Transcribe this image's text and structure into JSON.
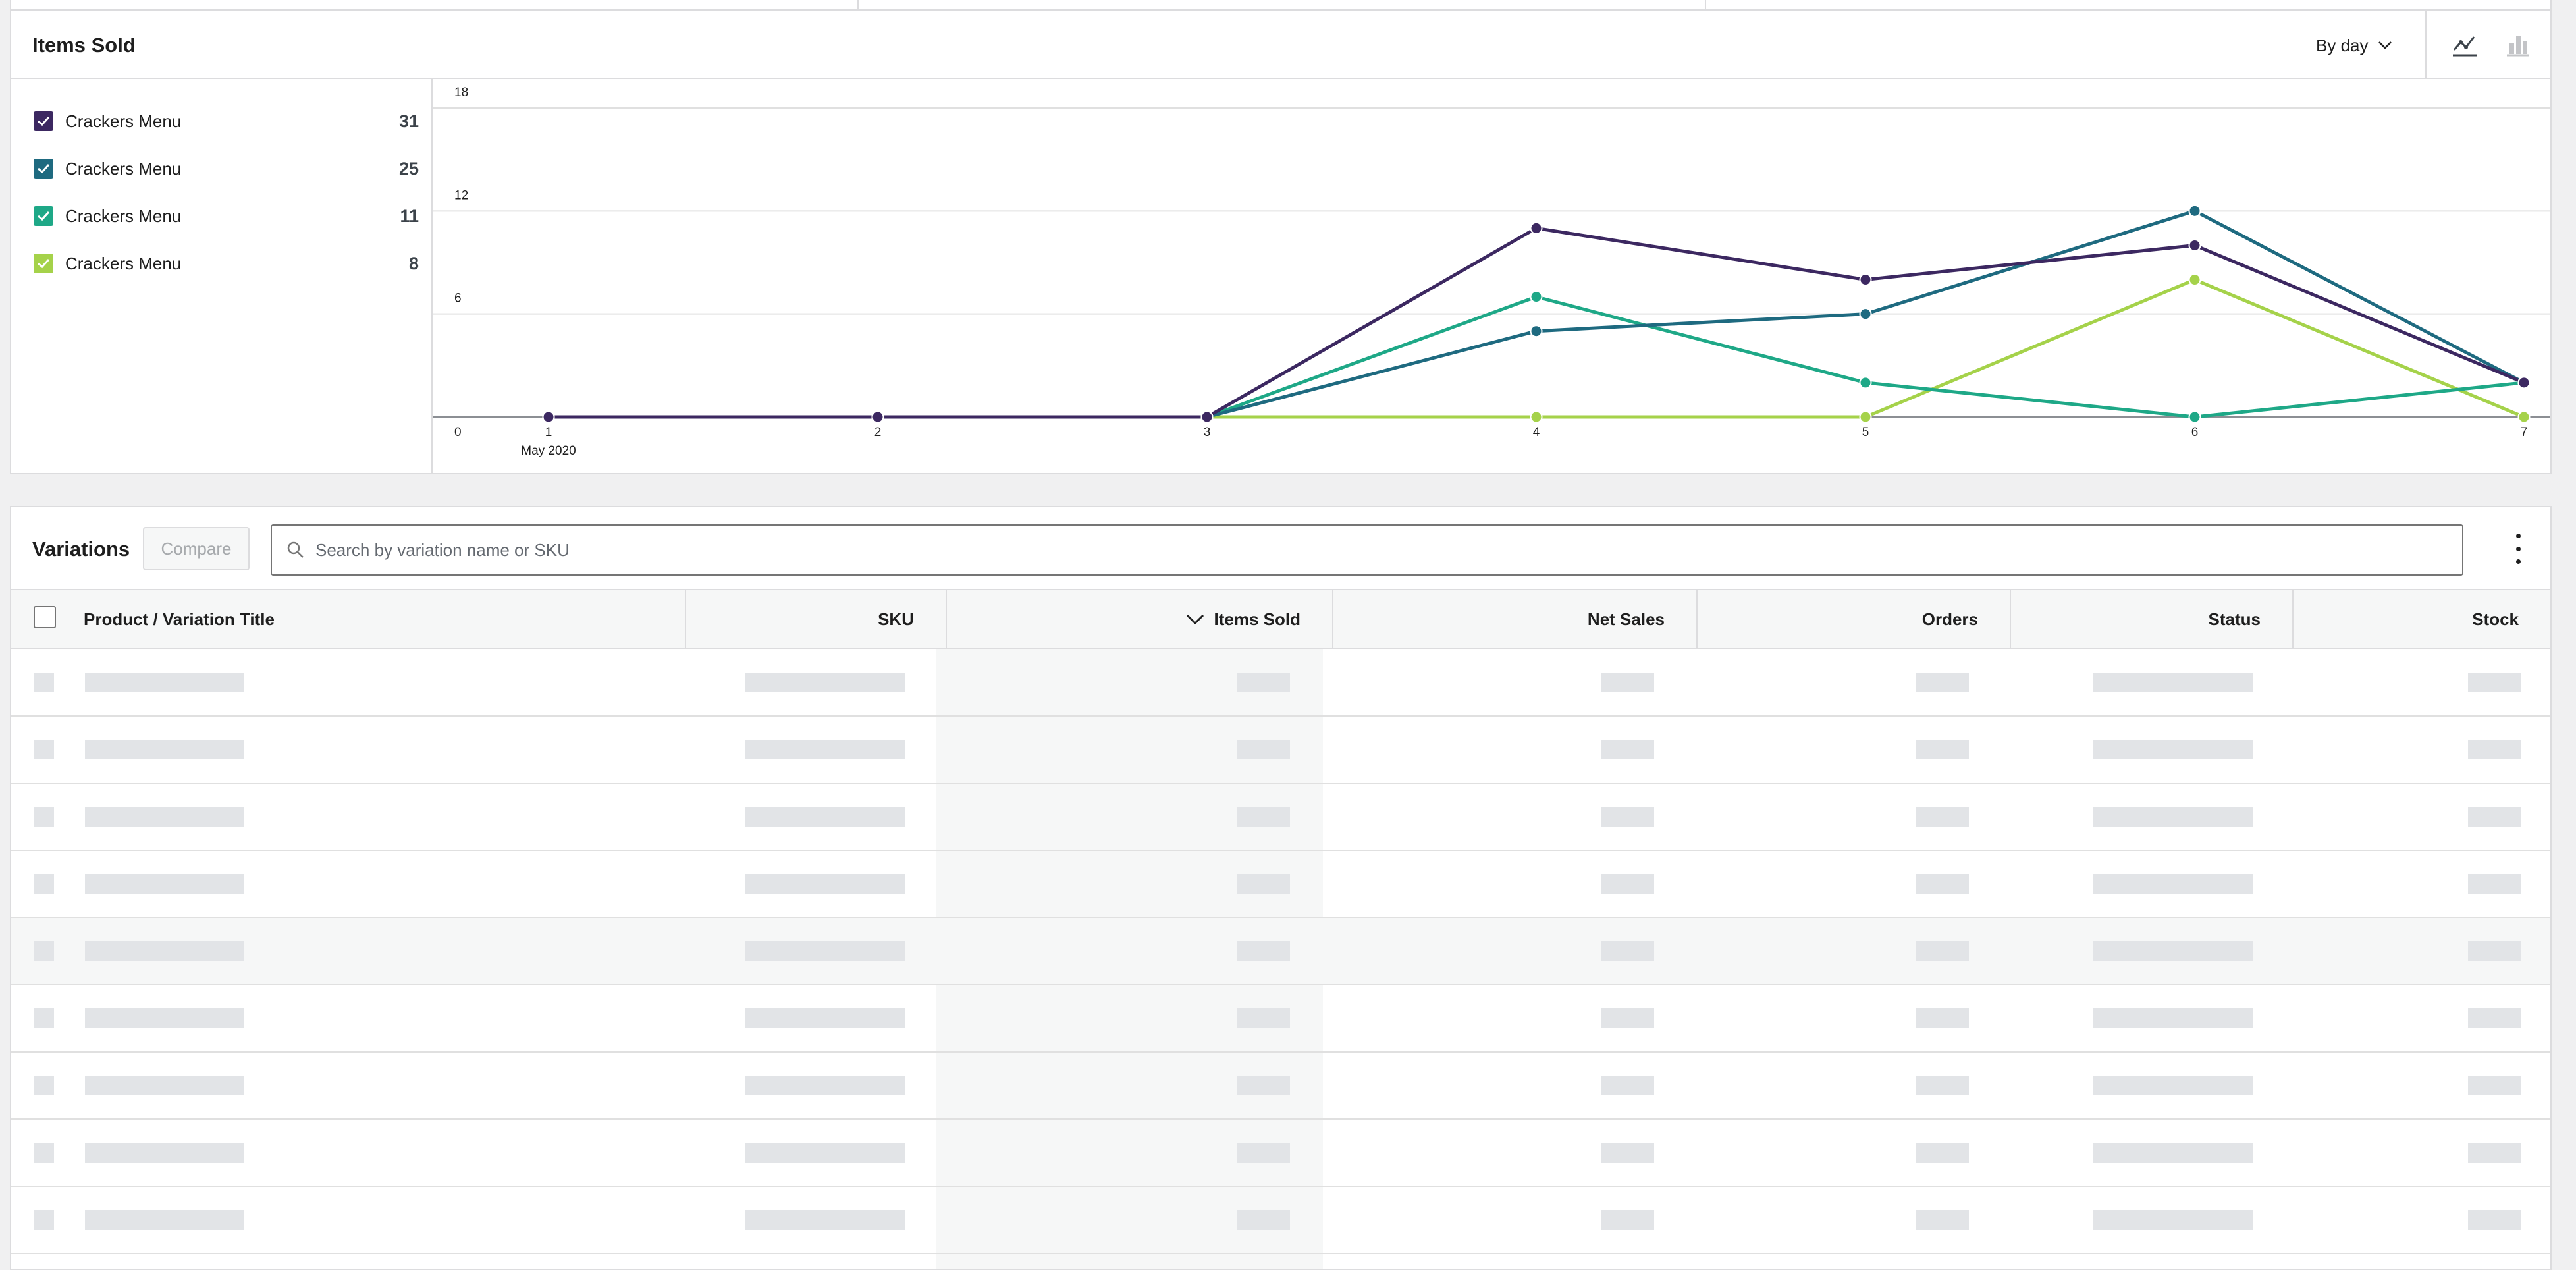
{
  "chart": {
    "title": "Items Sold",
    "interval_label": "By day",
    "line_chart_icon": "line-chart-icon",
    "bar_chart_icon": "bar-chart-icon",
    "legend": [
      {
        "label": "Crackers Menu",
        "value": "31",
        "color": "#3c2861"
      },
      {
        "label": "Crackers Menu",
        "value": "25",
        "color": "#1e6a80"
      },
      {
        "label": "Crackers Menu",
        "value": "11",
        "color": "#1ea887"
      },
      {
        "label": "Crackers Menu",
        "value": "8",
        "color": "#a5d24a"
      }
    ],
    "x_sublabel": "May 2020"
  },
  "chart_data": {
    "type": "line",
    "x": [
      1,
      2,
      3,
      4,
      5,
      6,
      7
    ],
    "x_tick_labels": [
      "1",
      "2",
      "3",
      "4",
      "5",
      "6",
      "7"
    ],
    "y_ticks": [
      0,
      6,
      12,
      18
    ],
    "ylim": [
      0,
      18
    ],
    "grid": true,
    "series": [
      {
        "name": "Crackers Menu",
        "color": "#3c2861",
        "values": [
          0,
          0,
          0,
          11,
          8,
          10,
          2
        ]
      },
      {
        "name": "Crackers Menu",
        "color": "#1e6a80",
        "values": [
          0,
          0,
          0,
          5,
          6,
          12,
          2
        ]
      },
      {
        "name": "Crackers Menu",
        "color": "#1ea887",
        "values": [
          0,
          0,
          0,
          7,
          2,
          0,
          2
        ]
      },
      {
        "name": "Crackers Menu",
        "color": "#a5d24a",
        "values": [
          0,
          0,
          0,
          0,
          0,
          8,
          0
        ]
      }
    ]
  },
  "table": {
    "title": "Variations",
    "compare_label": "Compare",
    "search_placeholder": "Search by variation name or SKU",
    "more_icon": "more-vertical-icon",
    "columns": [
      "Product / Variation Title",
      "SKU",
      "Items Sold",
      "Net Sales",
      "Orders",
      "Status",
      "Stock"
    ],
    "sort_icon": "chevron-down-icon",
    "placeholder_rows": 9
  }
}
